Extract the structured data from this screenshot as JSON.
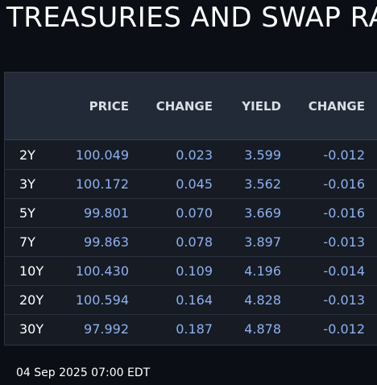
{
  "title": "TREASURIES AND SWAP RA",
  "table": {
    "columns": [
      "",
      "PRICE",
      "CHANGE",
      "YIELD",
      "CHANGE"
    ],
    "rows": [
      {
        "tenor": "2Y",
        "price": "100.049",
        "price_change": "0.023",
        "yield": "3.599",
        "yield_change": "-0.012"
      },
      {
        "tenor": "3Y",
        "price": "100.172",
        "price_change": "0.045",
        "yield": "3.562",
        "yield_change": "-0.016"
      },
      {
        "tenor": "5Y",
        "price": "99.801",
        "price_change": "0.070",
        "yield": "3.669",
        "yield_change": "-0.016"
      },
      {
        "tenor": "7Y",
        "price": "99.863",
        "price_change": "0.078",
        "yield": "3.897",
        "yield_change": "-0.013"
      },
      {
        "tenor": "10Y",
        "price": "100.430",
        "price_change": "0.109",
        "yield": "4.196",
        "yield_change": "-0.014"
      },
      {
        "tenor": "20Y",
        "price": "100.594",
        "price_change": "0.164",
        "yield": "4.828",
        "yield_change": "-0.013"
      },
      {
        "tenor": "30Y",
        "price": "97.992",
        "price_change": "0.187",
        "yield": "4.878",
        "yield_change": "-0.012"
      }
    ]
  },
  "timestamp": "04 Sep 2025 07:00 EDT",
  "colors": {
    "background": "#0b0e14",
    "panel": "#161b24",
    "header": "#222a38",
    "value_text": "#8fb1ee",
    "label_text": "#ffffff"
  }
}
